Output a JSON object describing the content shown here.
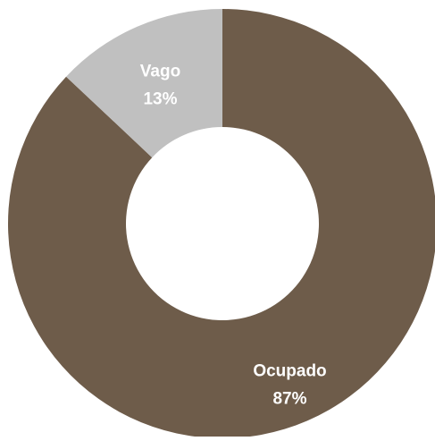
{
  "chart_data": {
    "type": "pie",
    "donut": true,
    "title": "",
    "categories": [
      "Ocupado",
      "Vago"
    ],
    "values": [
      87,
      13
    ],
    "value_labels": [
      "87%",
      "13%"
    ],
    "unit": "%",
    "colors": [
      "#6e5c4a",
      "#c0c0c0"
    ],
    "background_color": "#ffffff",
    "start": "top",
    "direction": "clockwise",
    "legend": "none"
  }
}
